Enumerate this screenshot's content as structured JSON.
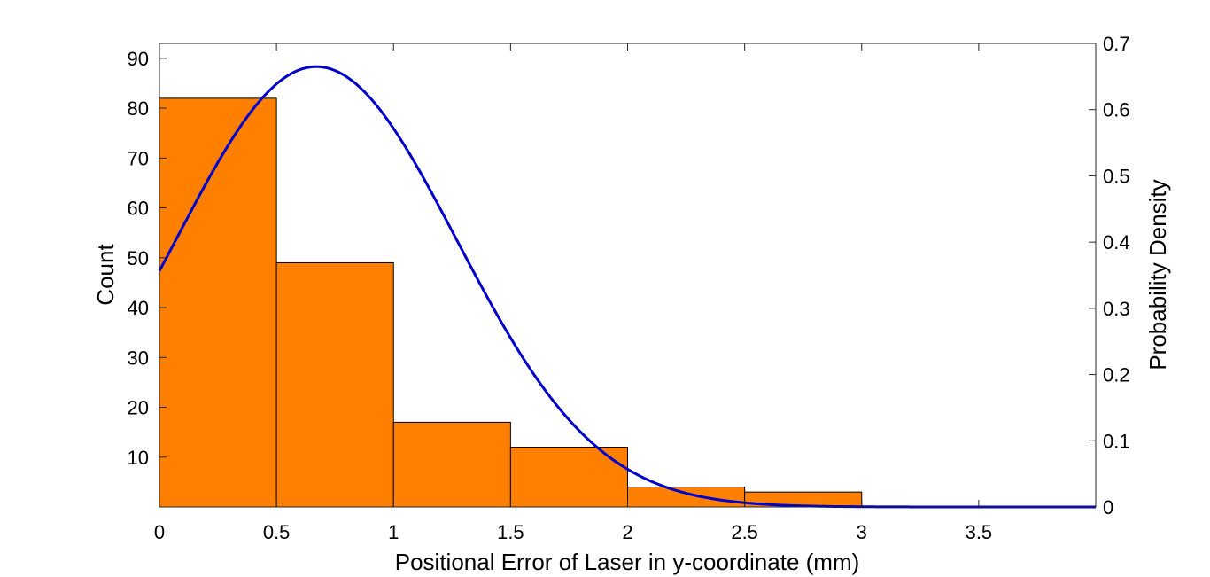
{
  "chart_data": {
    "type": "bar",
    "xlabel": "Positional Error of Laser in y-coordinate (mm)",
    "ylabel": "Count",
    "y2label": "Probability Density",
    "xlim": [
      0,
      4
    ],
    "ylim": [
      0,
      93
    ],
    "y2lim": [
      0,
      0.7
    ],
    "x_ticks": [
      "0",
      "0.5",
      "1",
      "1.5",
      "2",
      "2.5",
      "3",
      "3.5"
    ],
    "y_ticks": [
      "10",
      "20",
      "30",
      "40",
      "50",
      "60",
      "70",
      "80",
      "90"
    ],
    "y2_ticks": [
      "0",
      "0.1",
      "0.2",
      "0.3",
      "0.4",
      "0.5",
      "0.6",
      "0.7"
    ],
    "grid": false,
    "series": [
      {
        "type": "histogram",
        "color": "#FF8000",
        "bins": [
          [
            0,
            0.5
          ],
          [
            0.5,
            1
          ],
          [
            1,
            1.5
          ],
          [
            1.5,
            2
          ],
          [
            2,
            2.5
          ],
          [
            2.5,
            3
          ]
        ],
        "values": [
          82,
          49,
          17,
          12,
          4,
          3
        ]
      },
      {
        "type": "line",
        "axis": "right",
        "color": "#0000CC",
        "fit": "normal",
        "mean": 0.67,
        "sd": 0.6,
        "x_range": [
          0,
          4
        ]
      }
    ]
  }
}
